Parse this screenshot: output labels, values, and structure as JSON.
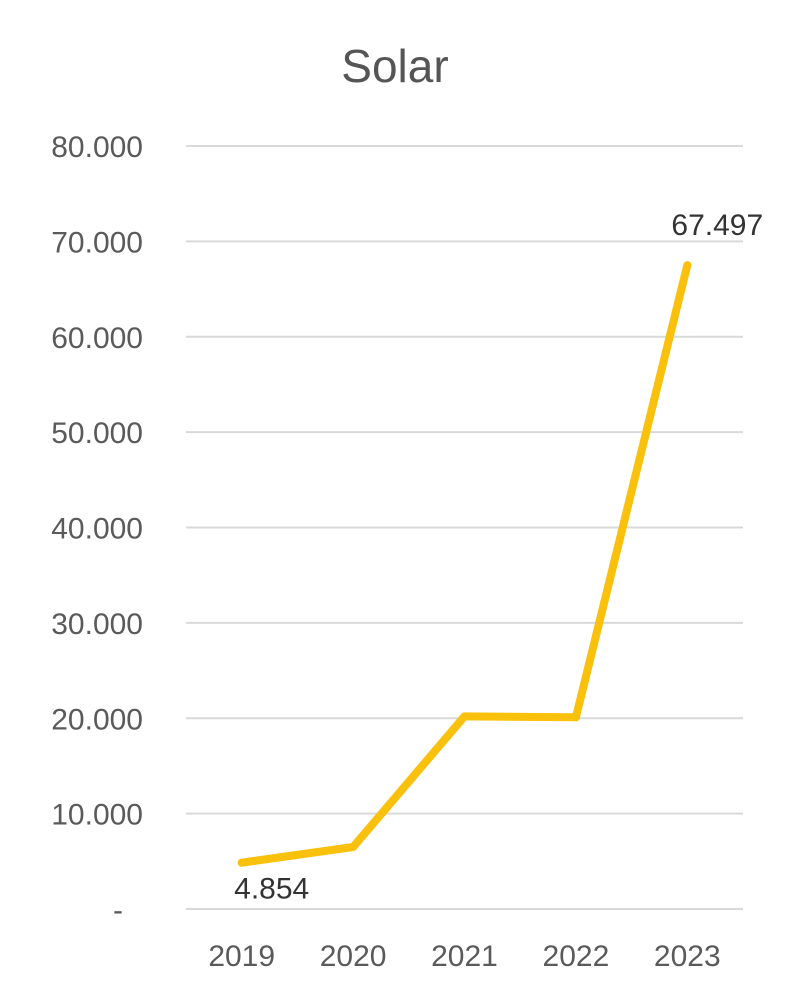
{
  "chart_data": {
    "type": "line",
    "title": "Solar",
    "categories": [
      "2019",
      "2020",
      "2021",
      "2022",
      "2023"
    ],
    "series": [
      {
        "values": [
          4854,
          6500,
          20200,
          20100,
          67497
        ]
      }
    ],
    "ylim": [
      0,
      80000
    ],
    "y_tick_values": [
      0,
      10000,
      20000,
      30000,
      40000,
      50000,
      60000,
      70000,
      80000
    ],
    "y_tick_labels": [
      "-",
      "10.000",
      "20.000",
      "30.000",
      "40.000",
      "50.000",
      "60.000",
      "70.000",
      "80.000"
    ],
    "data_labels": [
      {
        "index": 0,
        "text": "4.854",
        "position": "below"
      },
      {
        "index": 4,
        "text": "67.497",
        "position": "above"
      }
    ],
    "grid": true,
    "legend": "none",
    "line_color": "#f9c00c"
  }
}
